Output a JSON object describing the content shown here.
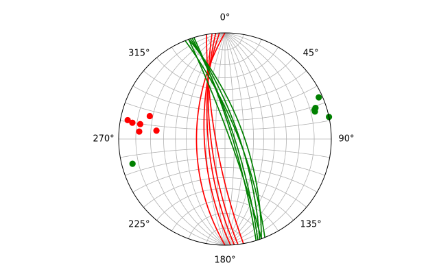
{
  "chart_data": {
    "type": "stereonet",
    "projection": "equal-angle (Wulff), lower hemisphere",
    "grid": true,
    "grid_spacing_deg": 10,
    "azimuth_labels": [
      "0°",
      "45°",
      "90°",
      "135°",
      "180°",
      "225°",
      "270°",
      "315°"
    ],
    "series": [
      {
        "color": "#ff0000",
        "planes": [
          {
            "strike": 170,
            "dip": 80
          },
          {
            "strike": 173,
            "dip": 75
          },
          {
            "strike": 175,
            "dip": 72
          },
          {
            "strike": 180,
            "dip": 60
          },
          {
            "strike": 177,
            "dip": 68
          }
        ],
        "poles": [
          {
            "trend": 287,
            "plunge": 17
          },
          {
            "trend": 281,
            "plunge": 4
          },
          {
            "trend": 280,
            "plunge": 7
          },
          {
            "trend": 280,
            "plunge": 12
          },
          {
            "trend": 275,
            "plunge": 12
          },
          {
            "trend": 277,
            "plunge": 24
          }
        ]
      },
      {
        "color": "#008000",
        "planes": [
          {
            "strike": 342,
            "dip": 80
          },
          {
            "strike": 341,
            "dip": 75
          },
          {
            "strike": 340,
            "dip": 85
          },
          {
            "strike": 338,
            "dip": 76
          },
          {
            "strike": 340,
            "dip": 70
          },
          {
            "strike": 343,
            "dip": 82
          }
        ]
      },
      {
        "color": "#008000",
        "poles": [
          {
            "trend": 66,
            "plunge": 2
          },
          {
            "trend": 72,
            "plunge": 7
          },
          {
            "trend": 71,
            "plunge": 6
          },
          {
            "trend": 73,
            "plunge": 7
          },
          {
            "trend": 78,
            "plunge": 0
          },
          {
            "trend": 255,
            "plunge": 6
          }
        ]
      }
    ]
  }
}
